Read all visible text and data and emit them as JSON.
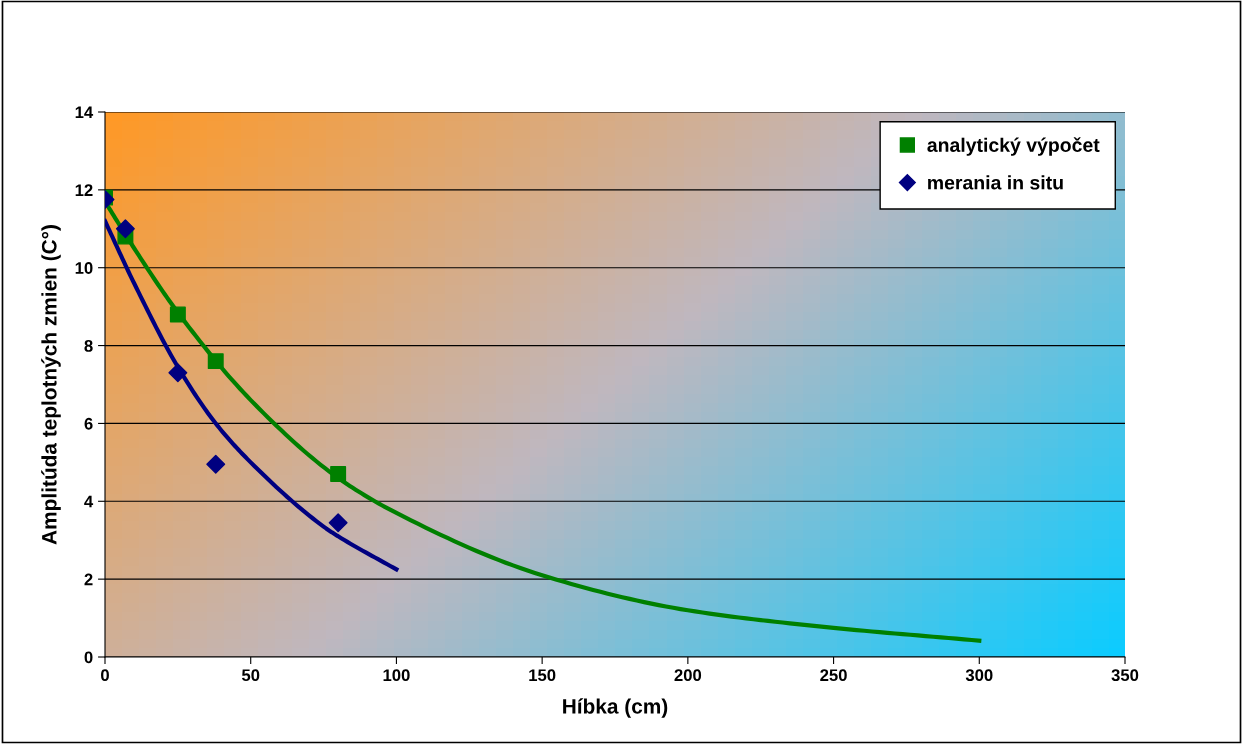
{
  "chart_data": {
    "type": "scatter",
    "xlabel": "Híbka (cm)",
    "ylabel": "Amplitúda teplotných zmien (C°)",
    "xlim": [
      0,
      350
    ],
    "xticks": [
      0,
      50,
      100,
      150,
      200,
      250,
      300,
      350
    ],
    "ylim": [
      0,
      14
    ],
    "yticks": [
      0,
      2,
      4,
      6,
      8,
      10,
      12,
      14
    ],
    "grid": "y",
    "legend": "top right",
    "series": [
      {
        "name": "analytický výpočet",
        "marker": "square",
        "color": "#008000",
        "x": [
          0,
          7,
          25,
          38,
          80
        ],
        "values": [
          11.8,
          10.8,
          8.8,
          7.6,
          4.7
        ]
      },
      {
        "name": "merania in situ",
        "marker": "diamond",
        "color": "#000080",
        "x": [
          0,
          7,
          25,
          38,
          80
        ],
        "values": [
          11.75,
          11.0,
          7.3,
          4.95,
          3.45
        ]
      },
      {
        "type": "line",
        "marker": "none",
        "line_style": "solid",
        "color": "#008000",
        "x": [
          0,
          10,
          25,
          50,
          80,
          100,
          150,
          200,
          250,
          300
        ],
        "values": [
          11.7,
          10.5,
          8.85,
          6.6,
          4.6,
          3.7,
          2.1,
          1.2,
          0.75,
          0.42
        ]
      },
      {
        "type": "line",
        "marker": "none",
        "line_style": "solid",
        "color": "#000080",
        "x": [
          0,
          10,
          25,
          38,
          50,
          75,
          80,
          100
        ],
        "values": [
          11.2,
          9.6,
          7.45,
          6.0,
          5.0,
          3.35,
          3.1,
          2.25
        ]
      }
    ]
  }
}
